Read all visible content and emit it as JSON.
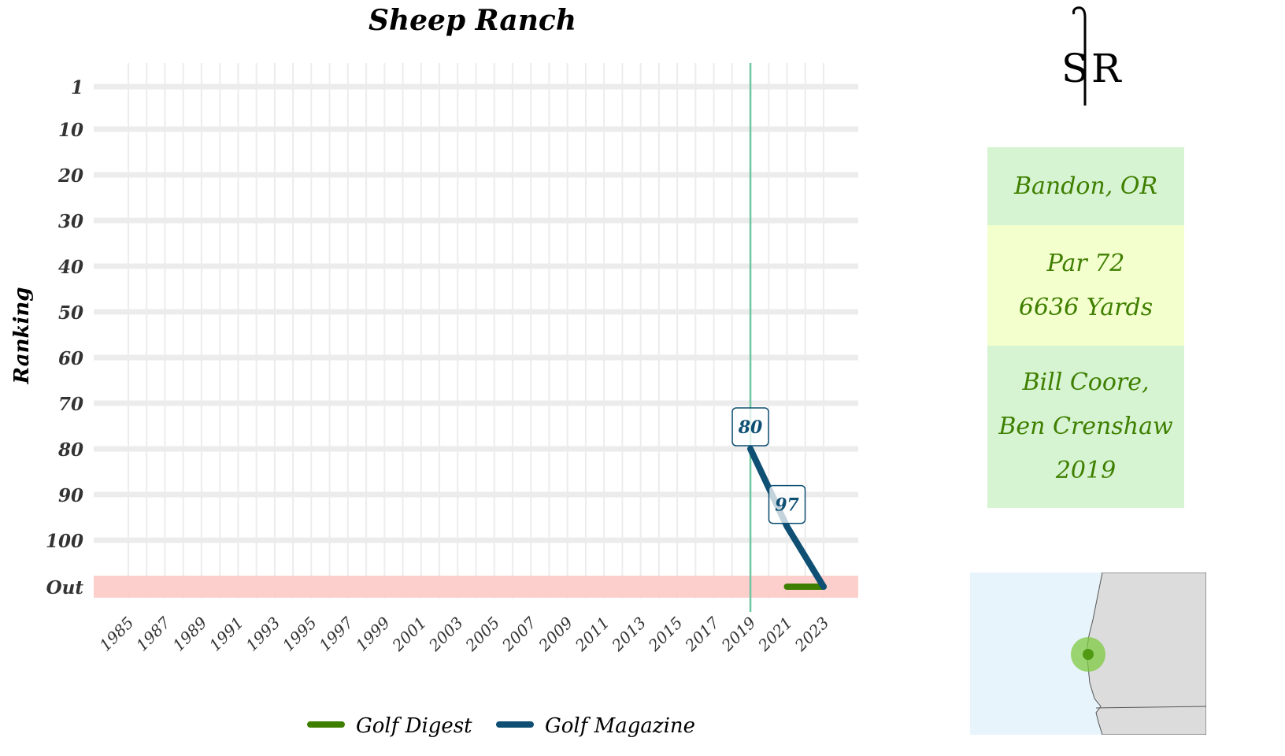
{
  "chart_data": {
    "type": "line",
    "title": "Sheep Ranch",
    "xlabel": "",
    "ylabel": "Ranking",
    "x_ticks": [
      "1985",
      "1987",
      "1989",
      "1991",
      "1993",
      "1995",
      "1997",
      "1999",
      "2001",
      "2003",
      "2005",
      "2007",
      "2009",
      "2011",
      "2013",
      "2015",
      "2017",
      "2019",
      "2021",
      "2023"
    ],
    "y_ticks": [
      "1",
      "10",
      "20",
      "30",
      "40",
      "50",
      "60",
      "70",
      "80",
      "90",
      "100",
      "Out"
    ],
    "xlim": [
      1985,
      2023
    ],
    "ylim": [
      1,
      110
    ],
    "out_value": 110,
    "opened_year": 2019,
    "series": [
      {
        "name": "Golf Digest",
        "color": "#3f7f00",
        "x": [
          2021,
          2023
        ],
        "y": [
          110,
          110
        ]
      },
      {
        "name": "Golf Magazine",
        "color": "#0e4f73",
        "x": [
          2019,
          2021,
          2023
        ],
        "y": [
          80,
          97,
          110
        ]
      }
    ],
    "labels": [
      {
        "series": "Golf Magazine",
        "x": 2019,
        "y": 80,
        "text": "80"
      },
      {
        "series": "Golf Magazine",
        "x": 2021,
        "y": 97,
        "text": "97"
      }
    ],
    "legend_position": "bottom",
    "grid": true
  },
  "logo": {
    "left": "S",
    "right": "R"
  },
  "info": {
    "location": "Bandon, OR",
    "par": "Par 72",
    "yards": "6636 Yards",
    "architects_line1": "Bill Coore,",
    "architects_line2": "Ben Crenshaw",
    "year": "2019"
  },
  "colors": {
    "location_bg": "#d6f4d2",
    "par_bg": "#f4ffce",
    "architect_bg": "#d6f4d2",
    "out_band": "#fccfcc",
    "opened_line": "#6fc7a1",
    "map_water": "#e8f4fc",
    "map_land": "#dcdcdc",
    "map_marker": "#7fc942"
  }
}
